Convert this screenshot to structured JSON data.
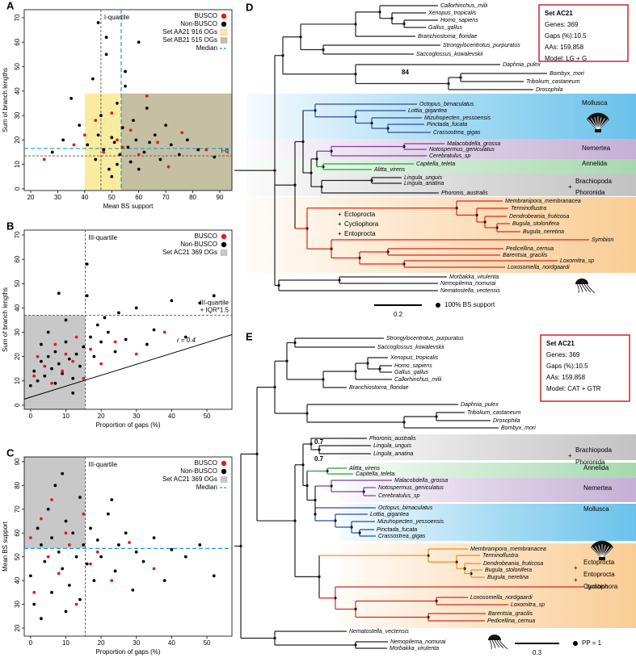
{
  "chart_data": [
    {
      "panel": "A",
      "type": "scatter",
      "xlabel": "Mean BS support",
      "ylabel": "Sum of branch lengths",
      "xlim": [
        17.6,
        94.5
      ],
      "ylim": [
        -0.7,
        73.3
      ],
      "xticks": [
        20,
        30,
        40,
        50,
        60,
        70,
        80,
        90
      ],
      "yticks": [
        0,
        10,
        20,
        30,
        40,
        50,
        60,
        70
      ],
      "series": [
        {
          "name": "BUSCO",
          "color": "#e31a1c",
          "x": [
            25,
            36,
            40,
            44,
            47,
            50,
            52,
            54,
            57,
            60,
            63,
            67,
            71,
            76,
            85
          ],
          "y": [
            12,
            18,
            22,
            28,
            15,
            31,
            20,
            17,
            24,
            14,
            38,
            19,
            9,
            23,
            16
          ]
        },
        {
          "name": "Non-BUSCO",
          "color": "#000000",
          "x": [
            28,
            32,
            35,
            38,
            41,
            43,
            44,
            45,
            46,
            47,
            48,
            49,
            50,
            51,
            52,
            53,
            54,
            55,
            56,
            57,
            58,
            59,
            60,
            62,
            63,
            64,
            66,
            68,
            70,
            72,
            75,
            78,
            82,
            88,
            45,
            50,
            55,
            60,
            48,
            52
          ],
          "y": [
            15,
            20,
            37,
            26,
            18,
            45,
            12,
            22,
            30,
            16,
            55,
            8,
            21,
            19,
            35,
            14,
            25,
            42,
            17,
            11,
            28,
            20,
            60,
            15,
            33,
            19,
            22,
            12,
            26,
            18,
            14,
            20,
            16,
            13,
            68,
            5,
            48,
            8,
            62,
            10
          ]
        }
      ],
      "regions": [
        {
          "name": "Set AA21 916 OGs",
          "color": "#fbeb9f",
          "xlim": [
            40,
            94.5
          ],
          "ylim": [
            -0.7,
            39
          ]
        },
        {
          "name": "Set AB21 515 OGs",
          "color": "#c5c0a3",
          "xlim": [
            53.5,
            94.5
          ],
          "ylim": [
            -0.7,
            39
          ]
        }
      ],
      "ref_lines": [
        {
          "axis": "x",
          "value": 46,
          "label": "I-quartile",
          "color": "#555555"
        },
        {
          "axis": "y",
          "value": 13.5,
          "label": "I-q",
          "color": "#555555"
        }
      ],
      "median": {
        "name": "Median",
        "color": "#1a9ad6",
        "x": 53.5,
        "y": 16.5
      },
      "legend": "upper right"
    },
    {
      "panel": "B",
      "type": "scatter",
      "xlabel": "Proportion of gaps (%)",
      "ylabel": "Sum of branch lengths",
      "xlim": [
        -1.8,
        57.1
      ],
      "ylim": [
        -1.7,
        72
      ],
      "xticks": [
        0,
        10,
        20,
        30,
        40,
        50
      ],
      "yticks": [
        0,
        10,
        20,
        30,
        40,
        50,
        60,
        70
      ],
      "series": [
        {
          "name": "BUSCO",
          "color": "#e31a1c",
          "x": [
            1,
            2,
            4,
            6,
            7,
            9,
            10,
            12,
            13,
            15,
            17,
            20,
            24,
            30,
            38
          ],
          "y": [
            12,
            20,
            16,
            9,
            25,
            14,
            21,
            18,
            28,
            11,
            23,
            17,
            26,
            21,
            30
          ]
        },
        {
          "name": "Non-BUSCO",
          "color": "#000000",
          "x": [
            0,
            1,
            2,
            3,
            3,
            4,
            5,
            5,
            6,
            7,
            7,
            8,
            9,
            10,
            10,
            11,
            12,
            13,
            14,
            15,
            16,
            17,
            18,
            19,
            20,
            22,
            24,
            25,
            27,
            30,
            33,
            35,
            40,
            44,
            48,
            52,
            8,
            12,
            16,
            21
          ],
          "y": [
            8,
            14,
            10,
            18,
            25,
            12,
            20,
            30,
            15,
            9,
            22,
            17,
            13,
            26,
            35,
            19,
            11,
            21,
            16,
            24,
            45,
            28,
            20,
            33,
            26,
            30,
            22,
            38,
            27,
            40,
            25,
            31,
            43,
            28,
            42,
            45,
            46,
            5,
            58,
            36
          ]
        }
      ],
      "regions": [
        {
          "name": "Set AC21 369 OGs",
          "color": "#c8c8c8",
          "xlim": [
            -1.8,
            15.5
          ],
          "ylim": [
            -1.7,
            37
          ]
        }
      ],
      "ref_lines": [
        {
          "axis": "x",
          "value": 15.5,
          "label": "III-quartile",
          "color": "#555555"
        },
        {
          "axis": "y",
          "value": 37,
          "label": [
            "III-quartile",
            "+ IQR*1.5"
          ],
          "color": "#555555"
        }
      ],
      "fit": {
        "label": "r = 0.4",
        "color": "#000000",
        "x": [
          -1.8,
          57.1
        ],
        "y": [
          2.5,
          29
        ]
      },
      "legend": "upper right"
    },
    {
      "panel": "C",
      "type": "scatter",
      "xlabel": "Proportion of gaps (%)",
      "ylabel": "Mean BS support",
      "xlim": [
        -1.8,
        57.1
      ],
      "ylim": [
        16.6,
        92
      ],
      "xticks": [
        0,
        10,
        20,
        30,
        40,
        50
      ],
      "yticks": [
        20,
        30,
        40,
        50,
        60,
        70,
        80,
        90
      ],
      "series": [
        {
          "name": "BUSCO",
          "color": "#e31a1c",
          "x": [
            0,
            1,
            3,
            5,
            6,
            8,
            10,
            11,
            13,
            15,
            17,
            19,
            23,
            28,
            35
          ],
          "y": [
            58,
            35,
            66,
            50,
            74,
            43,
            60,
            55,
            30,
            68,
            47,
            52,
            40,
            56,
            45
          ]
        },
        {
          "name": "Non-BUSCO",
          "color": "#000000",
          "x": [
            0,
            1,
            2,
            3,
            4,
            5,
            6,
            6,
            7,
            8,
            9,
            10,
            11,
            12,
            13,
            14,
            15,
            16,
            17,
            18,
            19,
            20,
            22,
            24,
            25,
            27,
            29,
            30,
            32,
            35,
            38,
            40,
            44,
            48,
            52,
            3,
            9,
            14,
            23,
            10
          ],
          "y": [
            42,
            30,
            62,
            55,
            48,
            70,
            35,
            58,
            80,
            52,
            45,
            65,
            38,
            60,
            50,
            75,
            55,
            47,
            62,
            40,
            57,
            50,
            68,
            44,
            55,
            60,
            36,
            52,
            48,
            58,
            40,
            53,
            50,
            55,
            42,
            24,
            85,
            32,
            74,
            27
          ]
        }
      ],
      "regions": [
        {
          "name": "Set AC21 369 OGs",
          "color": "#c8c8c8",
          "xlim": [
            -1.8,
            15.5
          ],
          "ylim": [
            53.5,
            92
          ]
        }
      ],
      "ref_lines": [
        {
          "axis": "x",
          "value": 15.5,
          "label": "III-quartile",
          "color": "#555555"
        }
      ],
      "median": {
        "name": "Median",
        "color": "#1a9ad6",
        "y": 53.5
      },
      "legend": "upper right"
    }
  ],
  "trees": [
    {
      "panel": "D",
      "leaves": [
        "Callorhinchus_milii",
        "Xenopus_tropicalis",
        "Homo_sapiens",
        "Gallus_gallus",
        "Branchiostoma_floridae",
        "Strongylocentrotus_purpuratus",
        "Saccoglossus_kowalevskii",
        "Daphnia_pulex",
        "Bombyx_mori",
        "Tribolium_castaneum",
        "Drosophila",
        "Octopus_bimaculatus",
        "Lottia_gigantea",
        "Mizuhopecten_yessoensis",
        "Pinctada_fucata",
        "Crassostrea_gigas",
        "Malacobdella_grossa",
        "Notospermus_geniculatus",
        "Cerebratulus_sp",
        "Capitella_teleta",
        "Alitta_virens",
        "Lingula_unguis",
        "Lingula_anatina",
        "Phoronis_australis",
        "Membranipora_membranacea",
        "Terminoflustra",
        "Dendrobeania_fruticosa",
        "Bugula_stolonifera",
        "Bugula_neretina",
        "Symbion",
        "Pedicellina_cernua",
        "Barentsia_gracilis",
        "Loxomitra_sp",
        "Loxosomella_nordgaardi",
        "Morbakka_virulenta",
        "Nemopilema_nomurai",
        "Nematostella_vectensis"
      ],
      "clade_labels": [
        {
          "text": "Mollusca",
          "color": "#1f7fc4"
        },
        {
          "text": "Nemertea",
          "color": "#000000"
        },
        {
          "text": "Annelida",
          "color": "#2a9d3a"
        },
        {
          "text": "Brachiopoda",
          "color": "#000000"
        },
        {
          "text": "+",
          "color": "#000000"
        },
        {
          "text": "Phoronida",
          "color": "#000000"
        },
        {
          "text": "+",
          "color": "#e0231b"
        },
        {
          "text": "Ectoprocta",
          "color": "#e0231b"
        },
        {
          "text": "+",
          "color": "#e0231b"
        },
        {
          "text": "Cycliophora",
          "color": "#e0231b"
        },
        {
          "text": "+",
          "color": "#e0231b"
        },
        {
          "text": "Entoprocta",
          "color": "#e0231b"
        }
      ],
      "set_box": {
        "title": "Set AC21",
        "lines": [
          "Genes: 369",
          "Gaps (%):10.5",
          "AAs: 159,858",
          "Model: LG + G"
        ],
        "color": "#d4202c"
      },
      "node_labels": [
        "84"
      ],
      "scale": "0.2",
      "support": "100% BS support"
    },
    {
      "panel": "E",
      "leaves": [
        "Strongylocentrotus_purpuratus",
        "Saccoglossus_kowalevskii",
        "Xenopus_tropicalis",
        "Homo_sapiens",
        "Gallus_gallus",
        "Callorhinchus_milii",
        "Branchiostoma_floridae",
        "Daphnia_pulex",
        "Tribolium_castaneum",
        "Drosophila",
        "Bombyx_mori",
        "Phoronis_australis",
        "Lingula_unguis",
        "Lingula_anatina",
        "Alitta_virens",
        "Capitella_teleta",
        "Malacobdella_grossa",
        "Notospermus_geniculatus",
        "Cerebratulus_sp",
        "Octopus_bimaculatus",
        "Lottia_gigantea",
        "Mizuhopecten_yessoensis",
        "Pinctada_fucata",
        "Crassostrea_gigas",
        "Membranipora_membranacea",
        "Terminoflustra",
        "Dendrobeania_fruticosa",
        "Bugula_stolonifera",
        "Bugula_neretina",
        "Symbion",
        "Loxosomella_nordgaardi",
        "Loxomitra_sp",
        "Barentsia_gracilis",
        "Pedicellina_cernua",
        "Nematostella_vectensis",
        "Nemopilema_nomurai",
        "Morbakka_virulenta"
      ],
      "clade_labels": [
        {
          "text": "Brachiopoda",
          "color": "#000000"
        },
        {
          "text": "+",
          "color": "#000000"
        },
        {
          "text": "Phoronida",
          "color": "#000000"
        },
        {
          "text": "Annelida",
          "color": "#2a9d3a"
        },
        {
          "text": "Nemertea",
          "color": "#000000"
        },
        {
          "text": "Mollusca",
          "color": "#1f7fc4"
        },
        {
          "text": "Ectoprocta",
          "color": "#f08a1c"
        },
        {
          "text": "+",
          "color": "#e0231b"
        },
        {
          "text": "Entoprocta",
          "color": "#e0231b"
        },
        {
          "text": "+",
          "color": "#e0231b"
        },
        {
          "text": "Cycliophora",
          "color": "#e0231b"
        }
      ],
      "set_box": {
        "title": "Set AC21",
        "lines": [
          "Genes: 369",
          "Gaps (%):10.5",
          "AAs: 159,858",
          "Model: CAT + GTR"
        ],
        "color": "#d4202c"
      },
      "node_labels": [
        "0.7",
        "0.7"
      ],
      "scale": "0.3",
      "support": "PP = 1"
    }
  ]
}
